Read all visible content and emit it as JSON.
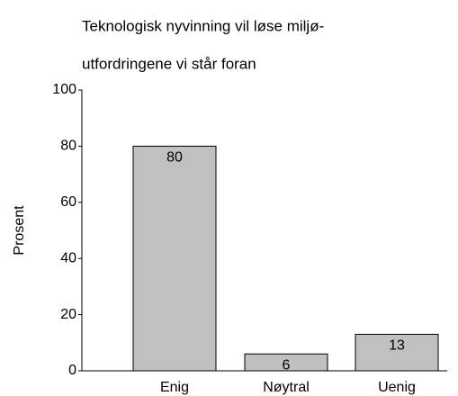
{
  "chart_data": {
    "type": "bar",
    "title": [
      "Teknologisk nyvinning vil løse miljø-",
      "utfordringene vi står foran"
    ],
    "y_label": "Prosent",
    "categories": [
      "Enig",
      "Nøytral",
      "Uenig"
    ],
    "values": [
      80,
      6,
      13
    ],
    "color": "#c0c0c0",
    "ylim": [
      0,
      100
    ],
    "yticks": [
      0,
      20,
      40,
      60,
      80,
      100
    ]
  }
}
